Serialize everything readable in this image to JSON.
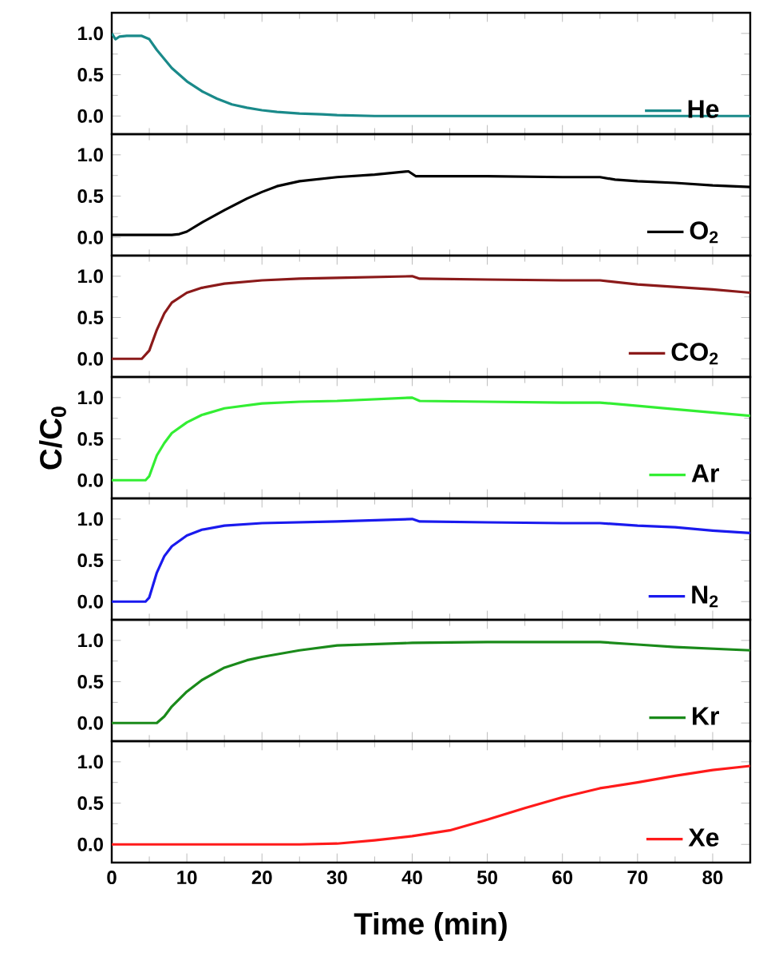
{
  "chart_data": [
    {
      "type": "line",
      "legend": "bottom right",
      "tick_labels": "y",
      "xlim": [
        0,
        85
      ],
      "xticks": [
        0,
        10,
        20,
        30,
        40,
        50,
        60,
        70,
        80
      ],
      "ylim": [
        -0.22,
        1.25
      ],
      "yticks": [
        {
          "value": 0,
          "label": "0.0"
        },
        {
          "value": 0.5,
          "label": "0.5"
        },
        {
          "value": 1,
          "label": "1.0"
        }
      ],
      "series": [
        {
          "name": "He",
          "color": "#1a8a8a",
          "x": [
            0,
            0.5,
            1,
            2,
            3,
            4,
            5,
            6,
            8,
            10,
            12,
            14,
            16,
            18,
            20,
            22,
            25,
            28,
            30,
            35,
            40,
            50,
            60,
            70,
            85
          ],
          "values": [
            1.0,
            0.93,
            0.96,
            0.97,
            0.97,
            0.97,
            0.93,
            0.8,
            0.58,
            0.42,
            0.3,
            0.21,
            0.14,
            0.1,
            0.07,
            0.05,
            0.03,
            0.02,
            0.01,
            0.0,
            0.0,
            0.0,
            0.0,
            0.0,
            0.0
          ]
        }
      ]
    },
    {
      "type": "line",
      "legend": "bottom right",
      "tick_labels": "y",
      "xlim": [
        0,
        85
      ],
      "xticks": [
        0,
        10,
        20,
        30,
        40,
        50,
        60,
        70,
        80
      ],
      "ylim": [
        -0.22,
        1.25
      ],
      "yticks": [
        {
          "value": 0,
          "label": "0.0"
        },
        {
          "value": 0.5,
          "label": "0.5"
        },
        {
          "value": 1,
          "label": "1.0"
        }
      ],
      "series": [
        {
          "name": "O$_{2}$",
          "color": "#000000",
          "x": [
            0,
            5,
            8,
            9,
            10,
            12,
            15,
            18,
            20,
            22,
            25,
            30,
            35,
            39.5,
            40.5,
            50,
            60,
            65,
            67,
            70,
            75,
            80,
            85
          ],
          "values": [
            0.03,
            0.03,
            0.03,
            0.04,
            0.07,
            0.18,
            0.33,
            0.47,
            0.55,
            0.62,
            0.68,
            0.73,
            0.76,
            0.8,
            0.74,
            0.74,
            0.73,
            0.73,
            0.7,
            0.68,
            0.66,
            0.63,
            0.61
          ]
        }
      ]
    },
    {
      "type": "line",
      "legend": "bottom right",
      "tick_labels": "y",
      "xlim": [
        0,
        85
      ],
      "xticks": [
        0,
        10,
        20,
        30,
        40,
        50,
        60,
        70,
        80
      ],
      "ylim": [
        -0.22,
        1.25
      ],
      "yticks": [
        {
          "value": 0,
          "label": "0.0"
        },
        {
          "value": 0.5,
          "label": "0.5"
        },
        {
          "value": 1,
          "label": "1.0"
        }
      ],
      "series": [
        {
          "name": "CO$_{2}$",
          "color": "#8b1a1a",
          "x": [
            0,
            4,
            5,
            6,
            7,
            8,
            10,
            12,
            15,
            20,
            25,
            30,
            40,
            41,
            50,
            60,
            65,
            70,
            75,
            80,
            85
          ],
          "values": [
            0.0,
            0.0,
            0.1,
            0.35,
            0.55,
            0.68,
            0.8,
            0.86,
            0.91,
            0.95,
            0.97,
            0.98,
            1.0,
            0.97,
            0.96,
            0.95,
            0.95,
            0.9,
            0.87,
            0.84,
            0.8
          ]
        }
      ]
    },
    {
      "type": "line",
      "legend": "bottom right",
      "tick_labels": "y",
      "ylabel": "C/C$_{0}$",
      "xlim": [
        0,
        85
      ],
      "xticks": [
        0,
        10,
        20,
        30,
        40,
        50,
        60,
        70,
        80
      ],
      "ylim": [
        -0.22,
        1.25
      ],
      "yticks": [
        {
          "value": 0,
          "label": "0.0"
        },
        {
          "value": 0.5,
          "label": "0.5"
        },
        {
          "value": 1,
          "label": "1.0"
        }
      ],
      "series": [
        {
          "name": "Ar",
          "color": "#33ee33",
          "x": [
            0,
            4.5,
            5,
            6,
            7,
            8,
            10,
            12,
            15,
            20,
            25,
            30,
            40,
            41,
            50,
            60,
            65,
            70,
            75,
            80,
            85
          ],
          "values": [
            0.0,
            0.0,
            0.05,
            0.3,
            0.45,
            0.57,
            0.7,
            0.79,
            0.87,
            0.93,
            0.95,
            0.96,
            1.0,
            0.96,
            0.95,
            0.94,
            0.94,
            0.9,
            0.86,
            0.82,
            0.78
          ]
        }
      ]
    },
    {
      "type": "line",
      "legend": "bottom right",
      "tick_labels": "y",
      "xlim": [
        0,
        85
      ],
      "xticks": [
        0,
        10,
        20,
        30,
        40,
        50,
        60,
        70,
        80
      ],
      "ylim": [
        -0.22,
        1.25
      ],
      "yticks": [
        {
          "value": 0,
          "label": "0.0"
        },
        {
          "value": 0.5,
          "label": "0.5"
        },
        {
          "value": 1,
          "label": "1.0"
        }
      ],
      "series": [
        {
          "name": "N$_{2}$",
          "color": "#1a1aee",
          "x": [
            0,
            4.5,
            5,
            6,
            7,
            8,
            10,
            12,
            15,
            20,
            30,
            40,
            41,
            50,
            60,
            65,
            70,
            75,
            80,
            85
          ],
          "values": [
            0.0,
            0.0,
            0.05,
            0.35,
            0.55,
            0.67,
            0.8,
            0.87,
            0.92,
            0.95,
            0.97,
            1.0,
            0.97,
            0.96,
            0.95,
            0.95,
            0.92,
            0.9,
            0.86,
            0.83
          ]
        }
      ]
    },
    {
      "type": "line",
      "legend": "bottom right",
      "tick_labels": "y",
      "xlim": [
        0,
        85
      ],
      "xticks": [
        0,
        10,
        20,
        30,
        40,
        50,
        60,
        70,
        80
      ],
      "ylim": [
        -0.22,
        1.25
      ],
      "yticks": [
        {
          "value": 0,
          "label": "0.0"
        },
        {
          "value": 0.5,
          "label": "0.5"
        },
        {
          "value": 1,
          "label": "1.0"
        }
      ],
      "series": [
        {
          "name": "Kr",
          "color": "#1a8a1a",
          "x": [
            0,
            6,
            7,
            8,
            10,
            12,
            15,
            18,
            20,
            25,
            30,
            40,
            50,
            60,
            65,
            70,
            75,
            80,
            85
          ],
          "values": [
            0.0,
            0.0,
            0.08,
            0.2,
            0.38,
            0.52,
            0.67,
            0.76,
            0.8,
            0.88,
            0.94,
            0.97,
            0.98,
            0.98,
            0.98,
            0.95,
            0.92,
            0.9,
            0.88
          ]
        }
      ]
    },
    {
      "type": "line",
      "legend": "bottom right",
      "xlabel": "Time (min)",
      "xlim": [
        0,
        85
      ],
      "xticks": [
        0,
        10,
        20,
        30,
        40,
        50,
        60,
        70,
        80
      ],
      "ylim": [
        -0.22,
        1.25
      ],
      "yticks": [
        {
          "value": 0,
          "label": "0.0"
        },
        {
          "value": 0.5,
          "label": "0.5"
        },
        {
          "value": 1,
          "label": "1.0"
        }
      ],
      "series": [
        {
          "name": "Xe",
          "color": "#ff1a1a",
          "x": [
            0,
            25,
            30,
            35,
            40,
            45,
            50,
            55,
            60,
            65,
            70,
            75,
            80,
            85
          ],
          "values": [
            0.0,
            0.0,
            0.01,
            0.05,
            0.1,
            0.17,
            0.3,
            0.44,
            0.57,
            0.68,
            0.75,
            0.83,
            0.9,
            0.95
          ]
        }
      ]
    }
  ]
}
